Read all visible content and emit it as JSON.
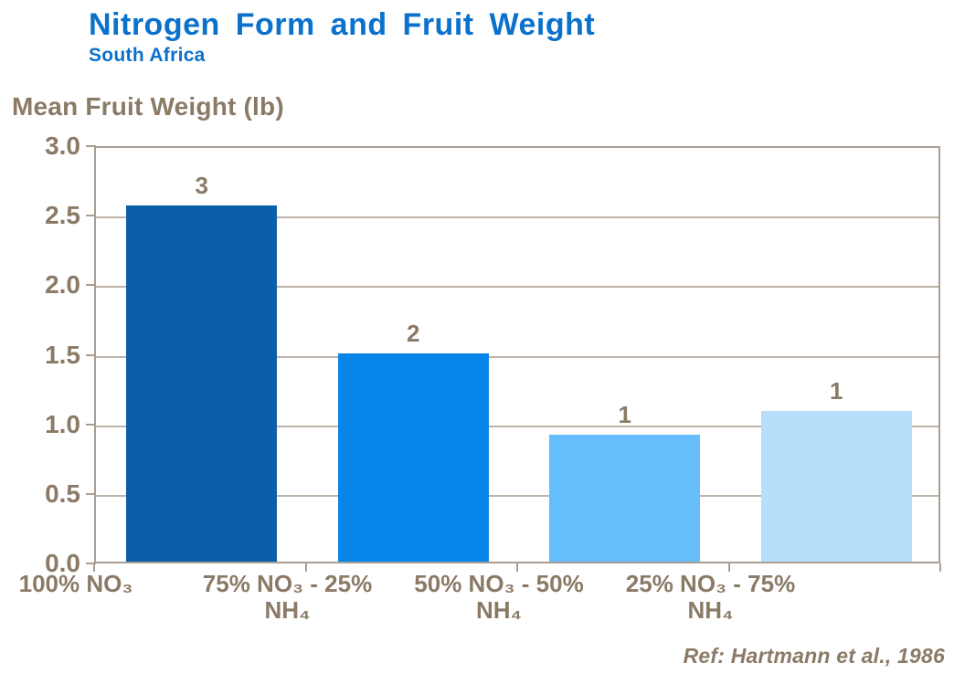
{
  "title": "Nitrogen Form and Fruit Weight",
  "subtitle": "South Africa",
  "y_axis_title": "Mean Fruit Weight (lb)",
  "reference": "Ref: Hartmann et al., 1986",
  "chart_data": {
    "type": "bar",
    "title": "Nitrogen Form and Fruit Weight",
    "subtitle": "South Africa",
    "ylabel": "Mean Fruit Weight (lb)",
    "xlabel": "",
    "categories": [
      "100% NO₃",
      "75% NO₃ - 25% NH₄",
      "50% NO₃ - 50% NH₄",
      "25% NO₃ - 75% NH₄"
    ],
    "category_label_lines": [
      [
        "100% NO₃"
      ],
      [
        "75% NO₃ - 25%",
        "NH₄"
      ],
      [
        "50% NO₃ - 50%",
        "NH₄"
      ],
      [
        "25% NO₃ - 75%",
        "NH₄"
      ]
    ],
    "values": [
      2.56,
      1.5,
      0.91,
      1.08
    ],
    "bar_labels": [
      "3",
      "2",
      "1",
      "1"
    ],
    "bar_colors": [
      "#0B5EA9",
      "#0885E8",
      "#66BDFC",
      "#B7DFFB"
    ],
    "ylim": [
      0,
      3
    ],
    "ytick_step": 0.5,
    "ytick_labels": [
      "3.0",
      "2.5",
      "2.0",
      "1.5",
      "1.0",
      "0.5",
      "0.0"
    ],
    "grid": true,
    "legend": false,
    "annotation": "Ref: Hartmann et al., 1986"
  },
  "colors": {
    "title_blue": "#0A71CC",
    "text_brown": "#8A7A66",
    "axis_line": "#A89E94",
    "gridline": "#BDB4A9"
  }
}
